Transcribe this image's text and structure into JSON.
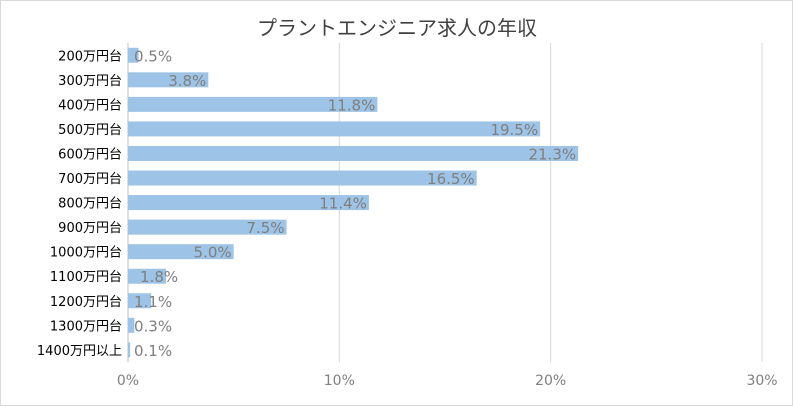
{
  "chart_data": {
    "type": "bar",
    "orientation": "horizontal",
    "title": "プラントエンジニア求人の年収",
    "categories": [
      "200万円台",
      "300万円台",
      "400万円台",
      "500万円台",
      "600万円台",
      "700万円台",
      "800万円台",
      "900万円台",
      "1000万円台",
      "1100万円台",
      "1200万円台",
      "1300万円台",
      "1400万円以上"
    ],
    "values": [
      0.5,
      3.8,
      11.8,
      19.5,
      21.3,
      16.5,
      11.4,
      7.5,
      5.0,
      1.8,
      1.1,
      0.3,
      0.1
    ],
    "data_labels": [
      "0.5%",
      "3.8%",
      "11.8%",
      "19.5%",
      "21.3%",
      "16.5%",
      "11.4%",
      "7.5%",
      "5.0%",
      "1.8%",
      "1.1%",
      "0.3%",
      "0.1%"
    ],
    "x_ticks": [
      0,
      10,
      20,
      30
    ],
    "x_tick_labels": [
      "0%",
      "10%",
      "20%",
      "30%"
    ],
    "xlim": [
      0,
      30
    ],
    "grid": "vertical",
    "legend": "none",
    "bar_color": "#9dc3e6"
  }
}
